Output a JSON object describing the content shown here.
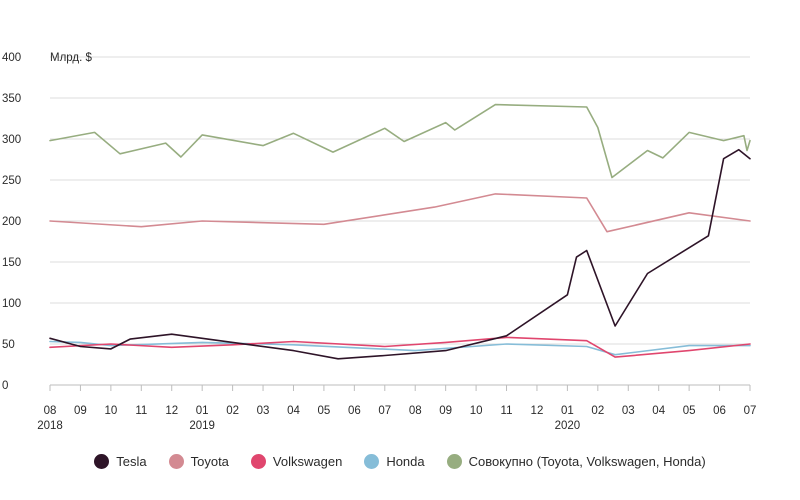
{
  "chart_data": {
    "type": "line",
    "ylabel": "Млрд. $",
    "ylim": [
      0,
      400
    ],
    "y_ticks": [
      0,
      50,
      100,
      150,
      200,
      250,
      300,
      350,
      400
    ],
    "x_range": [
      "2018-08",
      "2020-07"
    ],
    "x_tick_labels": [
      "08",
      "09",
      "10",
      "11",
      "12",
      "01",
      "02",
      "03",
      "04",
      "05",
      "06",
      "07",
      "08",
      "09",
      "10",
      "11",
      "12",
      "01",
      "02",
      "03",
      "04",
      "05",
      "06",
      "07"
    ],
    "x_year_labels": [
      {
        "index": 0,
        "label": "2018"
      },
      {
        "index": 5,
        "label": "2019"
      },
      {
        "index": 17,
        "label": "2020"
      }
    ],
    "grid": true,
    "legend_position": "bottom",
    "series": [
      {
        "name": "Tesla",
        "color": "#2e1428",
        "points": [
          {
            "x": "2018-08",
            "y": 57
          },
          {
            "x": "2018-09",
            "y": 47
          },
          {
            "x": "2018-10",
            "y": 44
          },
          {
            "x": "2018-10-20",
            "y": 56
          },
          {
            "x": "2018-12",
            "y": 62
          },
          {
            "x": "2019-02",
            "y": 52
          },
          {
            "x": "2019-04",
            "y": 42
          },
          {
            "x": "2019-05-15",
            "y": 32
          },
          {
            "x": "2019-07",
            "y": 36
          },
          {
            "x": "2019-09",
            "y": 42
          },
          {
            "x": "2019-11",
            "y": 60
          },
          {
            "x": "2020-01",
            "y": 110
          },
          {
            "x": "2020-01-10",
            "y": 156
          },
          {
            "x": "2020-01-20",
            "y": 164
          },
          {
            "x": "2020-02-18",
            "y": 72
          },
          {
            "x": "2020-03-20",
            "y": 136
          },
          {
            "x": "2020-05-20",
            "y": 182
          },
          {
            "x": "2020-06-05",
            "y": 276
          },
          {
            "x": "2020-06-20",
            "y": 287
          },
          {
            "x": "2020-07",
            "y": 276
          }
        ]
      },
      {
        "name": "Toyota",
        "color": "#d38a92",
        "points": [
          {
            "x": "2018-08",
            "y": 200
          },
          {
            "x": "2018-11",
            "y": 193
          },
          {
            "x": "2019-01",
            "y": 200
          },
          {
            "x": "2019-05",
            "y": 196
          },
          {
            "x": "2019-08-20",
            "y": 217
          },
          {
            "x": "2019-10-20",
            "y": 233
          },
          {
            "x": "2020-01-20",
            "y": 228
          },
          {
            "x": "2020-02-10",
            "y": 187
          },
          {
            "x": "2020-05",
            "y": 210
          },
          {
            "x": "2020-07",
            "y": 200
          }
        ]
      },
      {
        "name": "Volkswagen",
        "color": "#e0466e",
        "points": [
          {
            "x": "2018-08",
            "y": 46
          },
          {
            "x": "2018-10",
            "y": 50
          },
          {
            "x": "2018-12",
            "y": 46
          },
          {
            "x": "2019-02",
            "y": 49
          },
          {
            "x": "2019-04",
            "y": 53
          },
          {
            "x": "2019-07",
            "y": 47
          },
          {
            "x": "2019-09",
            "y": 52
          },
          {
            "x": "2019-11",
            "y": 58
          },
          {
            "x": "2020-01-20",
            "y": 54
          },
          {
            "x": "2020-02-18",
            "y": 34
          },
          {
            "x": "2020-05",
            "y": 42
          },
          {
            "x": "2020-07",
            "y": 50
          }
        ]
      },
      {
        "name": "Honda",
        "color": "#86bdd8",
        "points": [
          {
            "x": "2018-08",
            "y": 53
          },
          {
            "x": "2018-09",
            "y": 52
          },
          {
            "x": "2018-10",
            "y": 48
          },
          {
            "x": "2019-01",
            "y": 52
          },
          {
            "x": "2019-04",
            "y": 49
          },
          {
            "x": "2019-08",
            "y": 42
          },
          {
            "x": "2019-11",
            "y": 50
          },
          {
            "x": "2020-01-20",
            "y": 47
          },
          {
            "x": "2020-02-18",
            "y": 37
          },
          {
            "x": "2020-05",
            "y": 48
          },
          {
            "x": "2020-07",
            "y": 48
          }
        ]
      },
      {
        "name": "Совокупно (Toyota, Volkswagen, Honda)",
        "color": "#97ad80",
        "points": [
          {
            "x": "2018-08",
            "y": 298
          },
          {
            "x": "2018-09-15",
            "y": 308
          },
          {
            "x": "2018-10-10",
            "y": 282
          },
          {
            "x": "2018-11-25",
            "y": 295
          },
          {
            "x": "2018-12-10",
            "y": 278
          },
          {
            "x": "2019-01",
            "y": 305
          },
          {
            "x": "2019-03",
            "y": 292
          },
          {
            "x": "2019-04",
            "y": 307
          },
          {
            "x": "2019-05-10",
            "y": 284
          },
          {
            "x": "2019-07",
            "y": 313
          },
          {
            "x": "2019-07-20",
            "y": 297
          },
          {
            "x": "2019-09",
            "y": 320
          },
          {
            "x": "2019-09-10",
            "y": 311
          },
          {
            "x": "2019-10-20",
            "y": 342
          },
          {
            "x": "2020-01-20",
            "y": 339
          },
          {
            "x": "2020-02",
            "y": 314
          },
          {
            "x": "2020-02-15",
            "y": 253
          },
          {
            "x": "2020-03-20",
            "y": 286
          },
          {
            "x": "2020-04-05",
            "y": 277
          },
          {
            "x": "2020-05",
            "y": 308
          },
          {
            "x": "2020-06-05",
            "y": 298
          },
          {
            "x": "2020-06-25",
            "y": 304
          },
          {
            "x": "2020-06-28",
            "y": 286
          },
          {
            "x": "2020-07",
            "y": 298
          }
        ]
      }
    ]
  }
}
